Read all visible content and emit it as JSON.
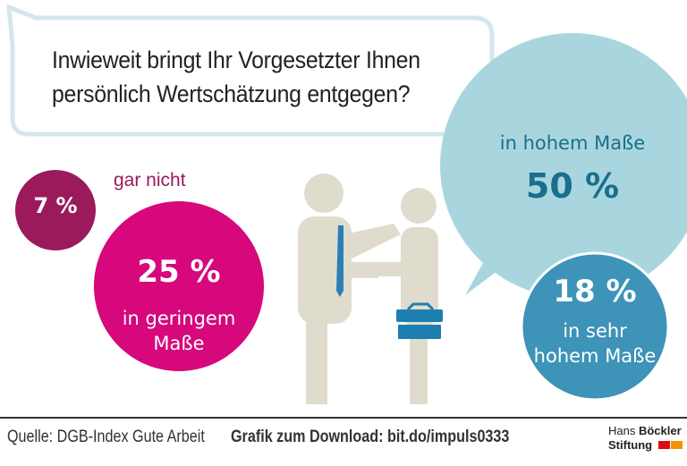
{
  "title": "Inwieweit bringt Ihr Vorgesetzter Ihnen persönlich Wertschätzung entgegen?",
  "title_lines": [
    "Inwieweit bringt Ihr Vorgesetzter Ihnen",
    "persönlich Wertschätzung entgegen?"
  ],
  "chart_data": {
    "type": "bubble",
    "title": "Inwieweit bringt Ihr Vorgesetzter Ihnen persönlich Wertschätzung entgegen?",
    "categories": [
      "gar nicht",
      "in geringem Maße",
      "in hohem Maße",
      "in sehr hohem Maße"
    ],
    "values": [
      7,
      25,
      50,
      18
    ],
    "value_labels": [
      "7 %",
      "25 %",
      "50 %",
      "18 %"
    ],
    "colors": [
      "#9a1a5b",
      "#d6087c",
      "#a9d6de",
      "#3d93b8"
    ]
  },
  "labels": {
    "gar_nicht": "gar nicht",
    "geringem": [
      "in geringem",
      "Maße"
    ],
    "hohem": "in hohem Maße",
    "sehr_hohem": [
      "in sehr",
      "hohem Maße"
    ]
  },
  "footer": {
    "source": "Quelle: DGB-Index Gute Arbeit",
    "download": "Grafik zum Download: bit.do/impuls0333",
    "logo": {
      "line1_a": "Hans ",
      "line1_b": "Böckler",
      "line2": "Stiftung",
      "colors": [
        "#e30613",
        "#f39200"
      ]
    }
  }
}
